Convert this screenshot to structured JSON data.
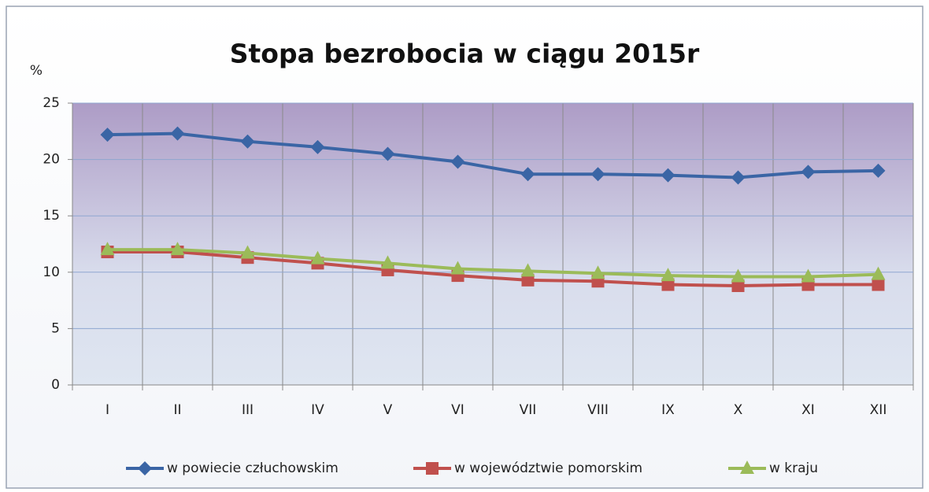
{
  "chart_data": {
    "type": "line",
    "title": "Stopa bezrobocia w ciągu 2015r",
    "y_label": "%",
    "categories": [
      "I",
      "II",
      "III",
      "IV",
      "V",
      "VI",
      "VII",
      "VIII",
      "IX",
      "X",
      "XI",
      "XII"
    ],
    "series": [
      {
        "name": "w powiecie człuchowskim",
        "color": "#3a65a5",
        "marker": "diamond",
        "values": [
          22.2,
          22.3,
          21.6,
          21.1,
          20.5,
          19.8,
          18.7,
          18.7,
          18.6,
          18.4,
          18.9,
          19.0
        ]
      },
      {
        "name": "w województwie pomorskim",
        "color": "#c0504d",
        "marker": "square",
        "values": [
          11.8,
          11.8,
          11.3,
          10.8,
          10.2,
          9.7,
          9.3,
          9.2,
          8.9,
          8.8,
          8.9,
          8.9
        ]
      },
      {
        "name": "w kraju",
        "color": "#9bbb59",
        "marker": "triangle",
        "values": [
          12.0,
          12.0,
          11.7,
          11.2,
          10.8,
          10.3,
          10.1,
          9.9,
          9.7,
          9.6,
          9.6,
          9.8
        ]
      }
    ],
    "ylim": [
      0,
      25
    ],
    "yticks": [
      0,
      5,
      10,
      15,
      20,
      25
    ],
    "grid": true,
    "legend": "bottom"
  }
}
